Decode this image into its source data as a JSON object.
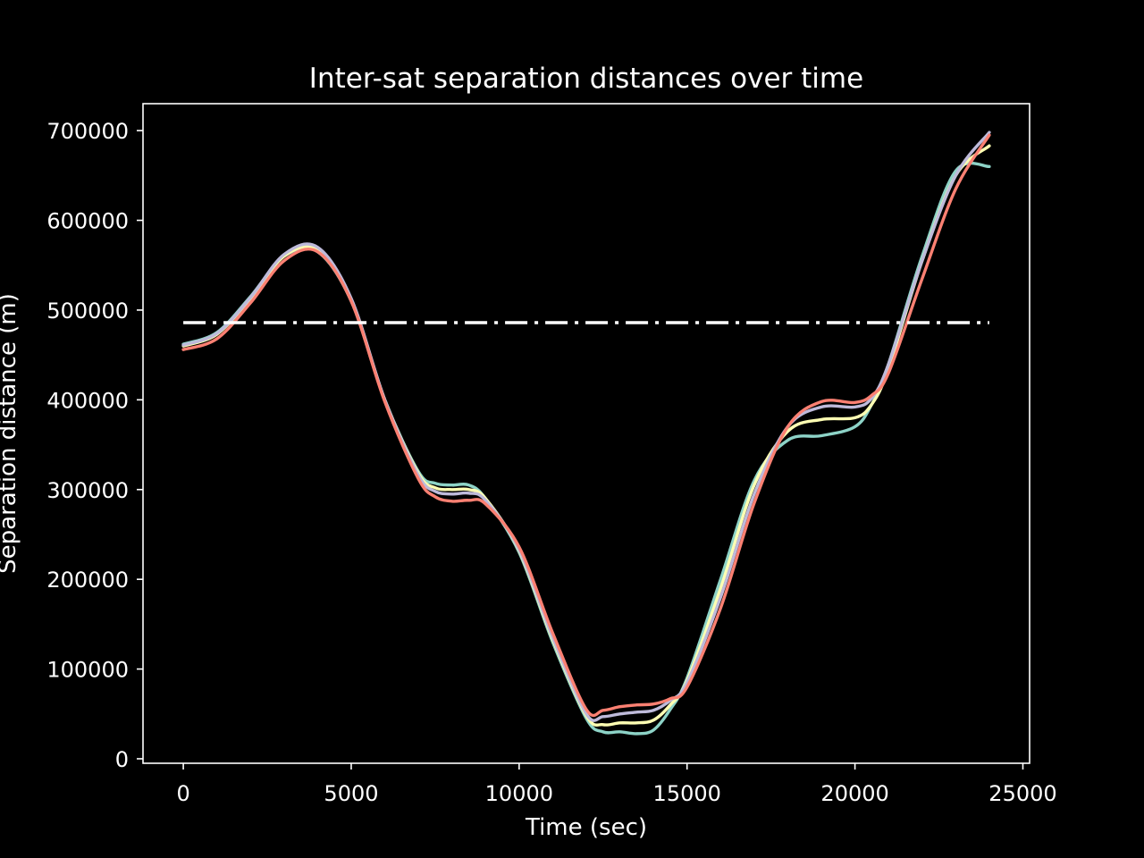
{
  "chart_data": {
    "type": "line",
    "title": "Inter-sat separation distances over time",
    "xlabel": "Time (sec)",
    "ylabel": "Separation distance (m)",
    "xlim": [
      -1200,
      25200
    ],
    "ylim": [
      -5000,
      730000
    ],
    "xticks": [
      0,
      5000,
      10000,
      15000,
      20000,
      25000
    ],
    "xtick_labels": [
      "0",
      "5000",
      "10000",
      "15000",
      "20000",
      "25000"
    ],
    "yticks": [
      0,
      100000,
      200000,
      300000,
      400000,
      500000,
      600000,
      700000
    ],
    "ytick_labels": [
      "0",
      "100000",
      "200000",
      "300000",
      "400000",
      "500000",
      "600000",
      "700000"
    ],
    "grid": false,
    "legend": "none",
    "threshold": {
      "y": 486000,
      "x": [
        0,
        24000
      ],
      "style": "dash-dot",
      "color": "#ffffff"
    },
    "x": [
      0,
      1000,
      2000,
      3000,
      4000,
      5000,
      6000,
      7000,
      7500,
      8000,
      8500,
      9000,
      10000,
      11000,
      12000,
      12500,
      13000,
      13500,
      14000,
      14500,
      15000,
      16000,
      17000,
      18000,
      19000,
      20000,
      20500,
      21000,
      22000,
      23000,
      24000
    ],
    "series": [
      {
        "color": "#8dd3c7",
        "values": [
          462000,
          475000,
          515000,
          560000,
          565000,
          510000,
          400000,
          320000,
          307000,
          305000,
          305000,
          290000,
          230000,
          130000,
          45000,
          30000,
          30000,
          28000,
          32000,
          55000,
          90000,
          200000,
          310000,
          355000,
          360000,
          370000,
          395000,
          440000,
          560000,
          655000,
          660000
        ]
      },
      {
        "color": "#ffffb3",
        "values": [
          460000,
          473000,
          513000,
          560000,
          567000,
          512000,
          400000,
          318000,
          302000,
          300000,
          300000,
          290000,
          232000,
          133000,
          48000,
          38000,
          40000,
          40000,
          43000,
          60000,
          87000,
          190000,
          305000,
          365000,
          378000,
          380000,
          395000,
          435000,
          555000,
          650000,
          683000
        ]
      },
      {
        "color": "#bebada",
        "values": [
          461000,
          474000,
          514000,
          562000,
          570000,
          513000,
          400000,
          316000,
          298000,
          295000,
          296000,
          288000,
          233000,
          135000,
          50000,
          47000,
          50000,
          52000,
          54000,
          65000,
          85000,
          180000,
          295000,
          370000,
          392000,
          392000,
          402000,
          440000,
          555000,
          650000,
          698000
        ]
      },
      {
        "color": "#fb8072",
        "values": [
          456000,
          468000,
          508000,
          555000,
          565000,
          510000,
          398000,
          312000,
          292000,
          287000,
          288000,
          284000,
          236000,
          140000,
          55000,
          54000,
          58000,
          60000,
          61000,
          67000,
          80000,
          168000,
          285000,
          370000,
          398000,
          397000,
          405000,
          430000,
          535000,
          635000,
          695000
        ]
      }
    ]
  }
}
